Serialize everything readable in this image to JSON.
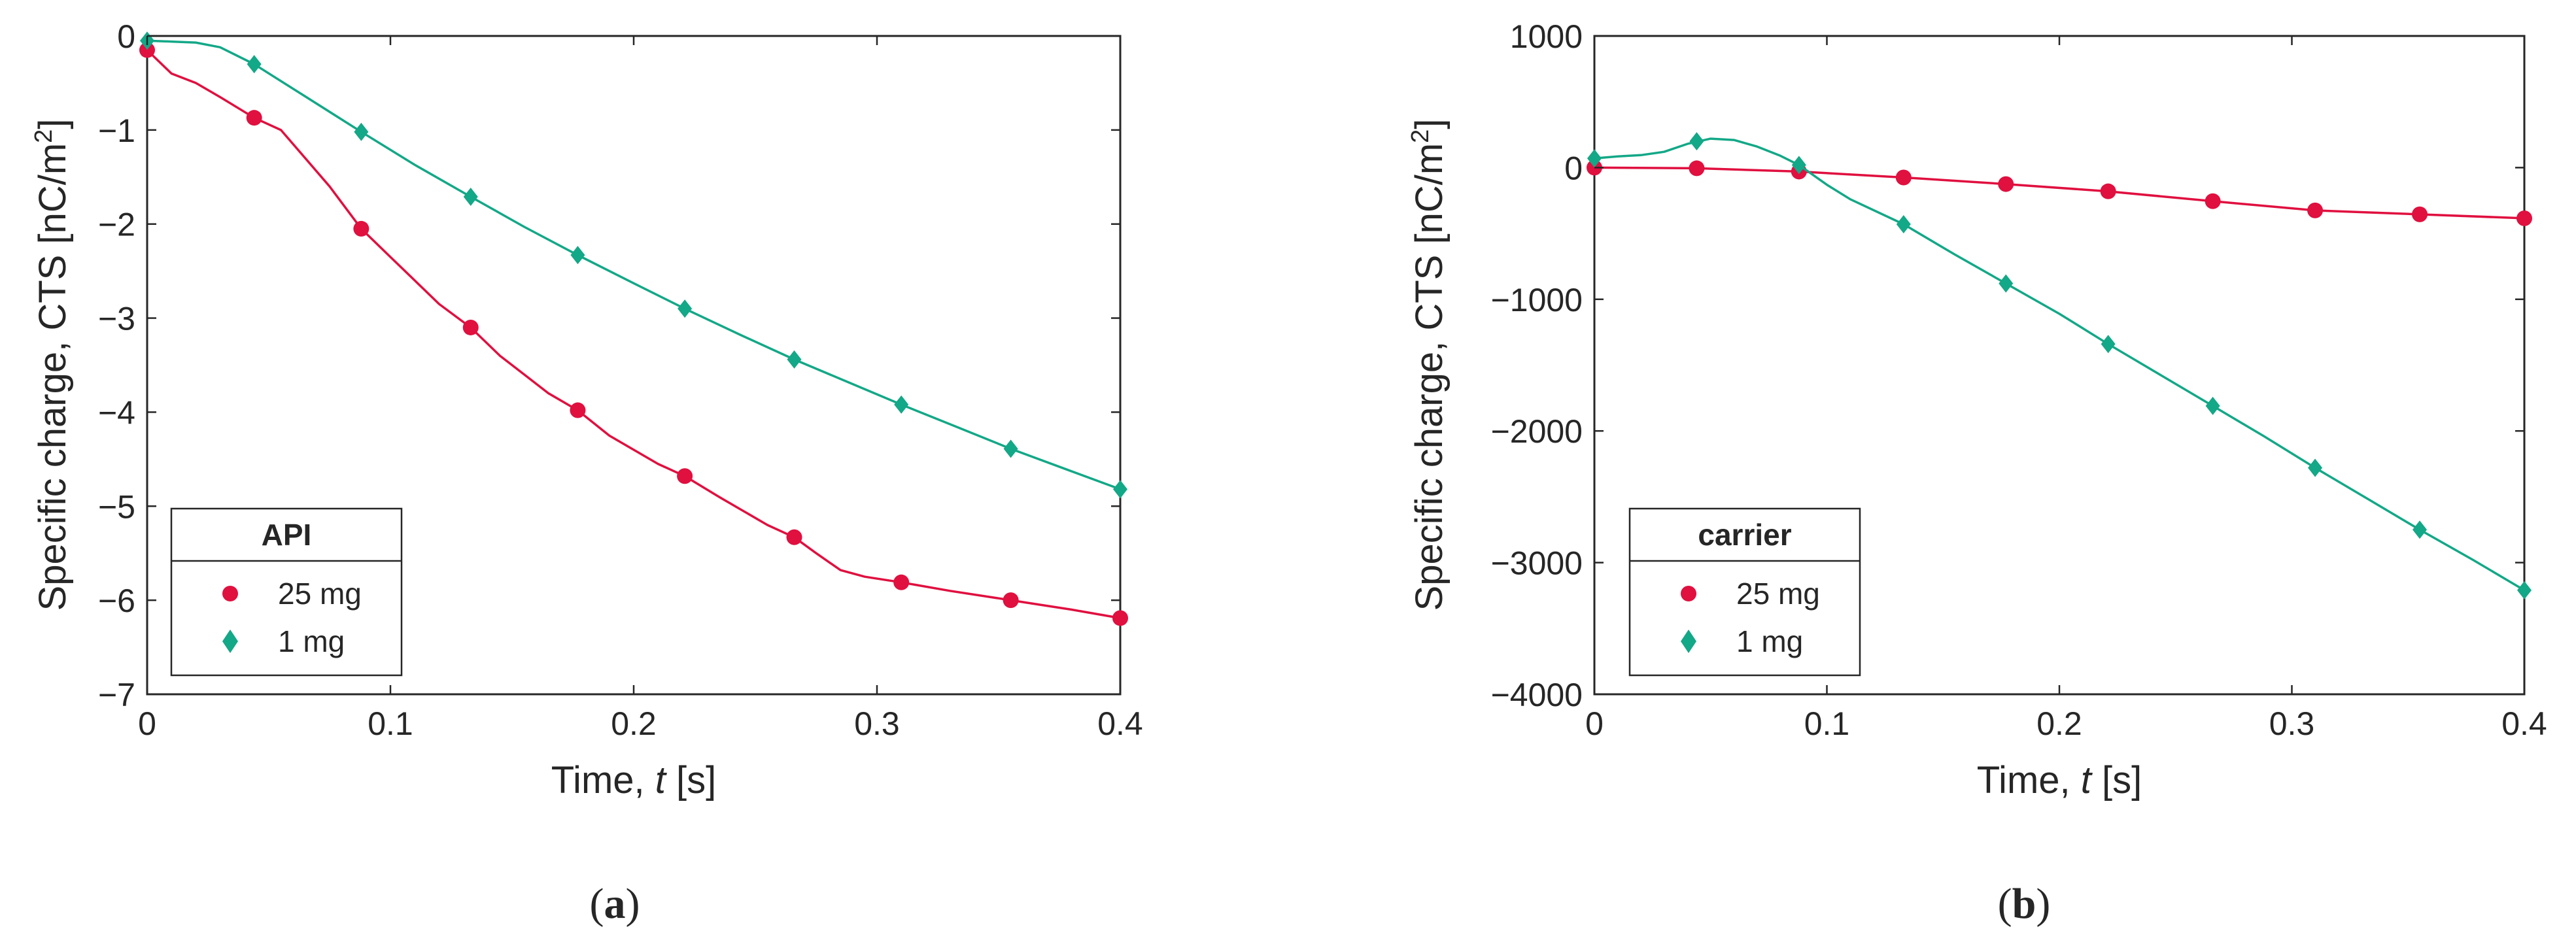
{
  "colors": {
    "series_25mg": "#e0103f",
    "series_1mg": "#13a887",
    "axis": "#262626"
  },
  "chart_data": [
    {
      "type": "line",
      "panel_label_open": "(",
      "panel_label_letter": "a",
      "panel_label_close": ")",
      "xlabel_prefix": "Time, ",
      "xlabel_var": "t",
      "xlabel_suffix": " [s]",
      "ylabel": "Specific charge, CTS [nC/m",
      "ylabel_sup": "2",
      "ylabel_end": "]",
      "xlim": [
        0,
        0.4
      ],
      "ylim": [
        -7,
        0
      ],
      "xticks": [
        0,
        0.1,
        0.2,
        0.3,
        0.4
      ],
      "xtick_labels": [
        "0",
        "0.1",
        "0.2",
        "0.3",
        "0.4"
      ],
      "yticks": [
        0,
        -1,
        -2,
        -3,
        -4,
        -5,
        -6,
        -7
      ],
      "ytick_labels": [
        "0",
        "−1",
        "−2",
        "−3",
        "−4",
        "−5",
        "−6",
        "−7"
      ],
      "legend": {
        "title": "API",
        "placement": "bottom-left"
      },
      "series": [
        {
          "name": "25 mg",
          "color": "#e0103f",
          "marker": "circle",
          "x": [
            0,
            0.01,
            0.02,
            0.03,
            0.044,
            0.055,
            0.065,
            0.075,
            0.088,
            0.1,
            0.11,
            0.12,
            0.133,
            0.145,
            0.155,
            0.165,
            0.177,
            0.19,
            0.2,
            0.21,
            0.221,
            0.235,
            0.245,
            0.255,
            0.266,
            0.275,
            0.285,
            0.295,
            0.31,
            0.33,
            0.355,
            0.38,
            0.4
          ],
          "y": [
            -0.15,
            -0.4,
            -0.5,
            -0.65,
            -0.87,
            -1.0,
            -1.3,
            -1.6,
            -2.05,
            -2.35,
            -2.6,
            -2.85,
            -3.1,
            -3.4,
            -3.6,
            -3.8,
            -3.98,
            -4.25,
            -4.4,
            -4.55,
            -4.68,
            -4.9,
            -5.05,
            -5.2,
            -5.33,
            -5.5,
            -5.68,
            -5.75,
            -5.81,
            -5.9,
            -6.0,
            -6.1,
            -6.19
          ],
          "marker_x": [
            0,
            0.044,
            0.088,
            0.133,
            0.177,
            0.221,
            0.266,
            0.31,
            0.355,
            0.4
          ],
          "marker_y": [
            -0.15,
            -0.87,
            -2.05,
            -3.1,
            -3.98,
            -4.68,
            -5.33,
            -5.81,
            -6.0,
            -6.19
          ]
        },
        {
          "name": "1 mg",
          "color": "#13a887",
          "marker": "diamond",
          "x": [
            0,
            0.01,
            0.02,
            0.03,
            0.044,
            0.066,
            0.088,
            0.11,
            0.133,
            0.155,
            0.177,
            0.2,
            0.221,
            0.244,
            0.266,
            0.288,
            0.31,
            0.333,
            0.355,
            0.378,
            0.4
          ],
          "y": [
            -0.05,
            -0.06,
            -0.07,
            -0.12,
            -0.3,
            -0.66,
            -1.02,
            -1.37,
            -1.71,
            -2.03,
            -2.33,
            -2.63,
            -2.9,
            -3.18,
            -3.44,
            -3.68,
            -3.92,
            -4.16,
            -4.39,
            -4.61,
            -4.82
          ],
          "marker_x": [
            0,
            0.044,
            0.088,
            0.133,
            0.177,
            0.221,
            0.266,
            0.31,
            0.355,
            0.4
          ],
          "marker_y": [
            -0.05,
            -0.3,
            -1.02,
            -1.71,
            -2.33,
            -2.9,
            -3.44,
            -3.92,
            -4.39,
            -4.82
          ]
        }
      ]
    },
    {
      "type": "line",
      "panel_label_open": "(",
      "panel_label_letter": "b",
      "panel_label_close": ")",
      "xlabel_prefix": "Time, ",
      "xlabel_var": "t",
      "xlabel_suffix": " [s]",
      "ylabel": "Specific charge, CTS [nC/m",
      "ylabel_sup": "2",
      "ylabel_end": "]",
      "xlim": [
        0,
        0.4
      ],
      "ylim": [
        -4000,
        1000
      ],
      "xticks": [
        0,
        0.1,
        0.2,
        0.3,
        0.4
      ],
      "xtick_labels": [
        "0",
        "0.1",
        "0.2",
        "0.3",
        "0.4"
      ],
      "yticks": [
        1000,
        0,
        -1000,
        -2000,
        -3000,
        -4000
      ],
      "ytick_labels": [
        "1000",
        "0",
        "−1000",
        "−2000",
        "−3000",
        "−4000"
      ],
      "legend": {
        "title": "carrier",
        "placement": "bottom-left"
      },
      "series": [
        {
          "name": "25 mg",
          "color": "#e0103f",
          "marker": "circle",
          "x": [
            0,
            0.044,
            0.088,
            0.133,
            0.177,
            0.221,
            0.266,
            0.31,
            0.355,
            0.4
          ],
          "y": [
            0,
            -5,
            -30,
            -75,
            -125,
            -180,
            -255,
            -325,
            -355,
            -385
          ],
          "marker_x": [
            0,
            0.044,
            0.088,
            0.133,
            0.177,
            0.221,
            0.266,
            0.31,
            0.355,
            0.4
          ],
          "marker_y": [
            0,
            -5,
            -30,
            -75,
            -125,
            -180,
            -255,
            -325,
            -355,
            -385
          ]
        },
        {
          "name": "1 mg",
          "color": "#13a887",
          "marker": "diamond",
          "x": [
            0,
            0.01,
            0.02,
            0.03,
            0.04,
            0.05,
            0.06,
            0.07,
            0.08,
            0.088,
            0.1,
            0.11,
            0.133,
            0.155,
            0.177,
            0.2,
            0.221,
            0.244,
            0.266,
            0.288,
            0.31,
            0.333,
            0.355,
            0.378,
            0.4
          ],
          "y": [
            70,
            85,
            95,
            120,
            180,
            220,
            210,
            160,
            90,
            20,
            -130,
            -240,
            -430,
            -660,
            -880,
            -1110,
            -1340,
            -1580,
            -1810,
            -2040,
            -2280,
            -2520,
            -2750,
            -2980,
            -3210
          ],
          "marker_x": [
            0,
            0.044,
            0.088,
            0.133,
            0.177,
            0.221,
            0.266,
            0.31,
            0.355,
            0.4
          ],
          "marker_y": [
            70,
            200,
            20,
            -430,
            -880,
            -1340,
            -1810,
            -2280,
            -2750,
            -3210
          ]
        }
      ]
    }
  ]
}
